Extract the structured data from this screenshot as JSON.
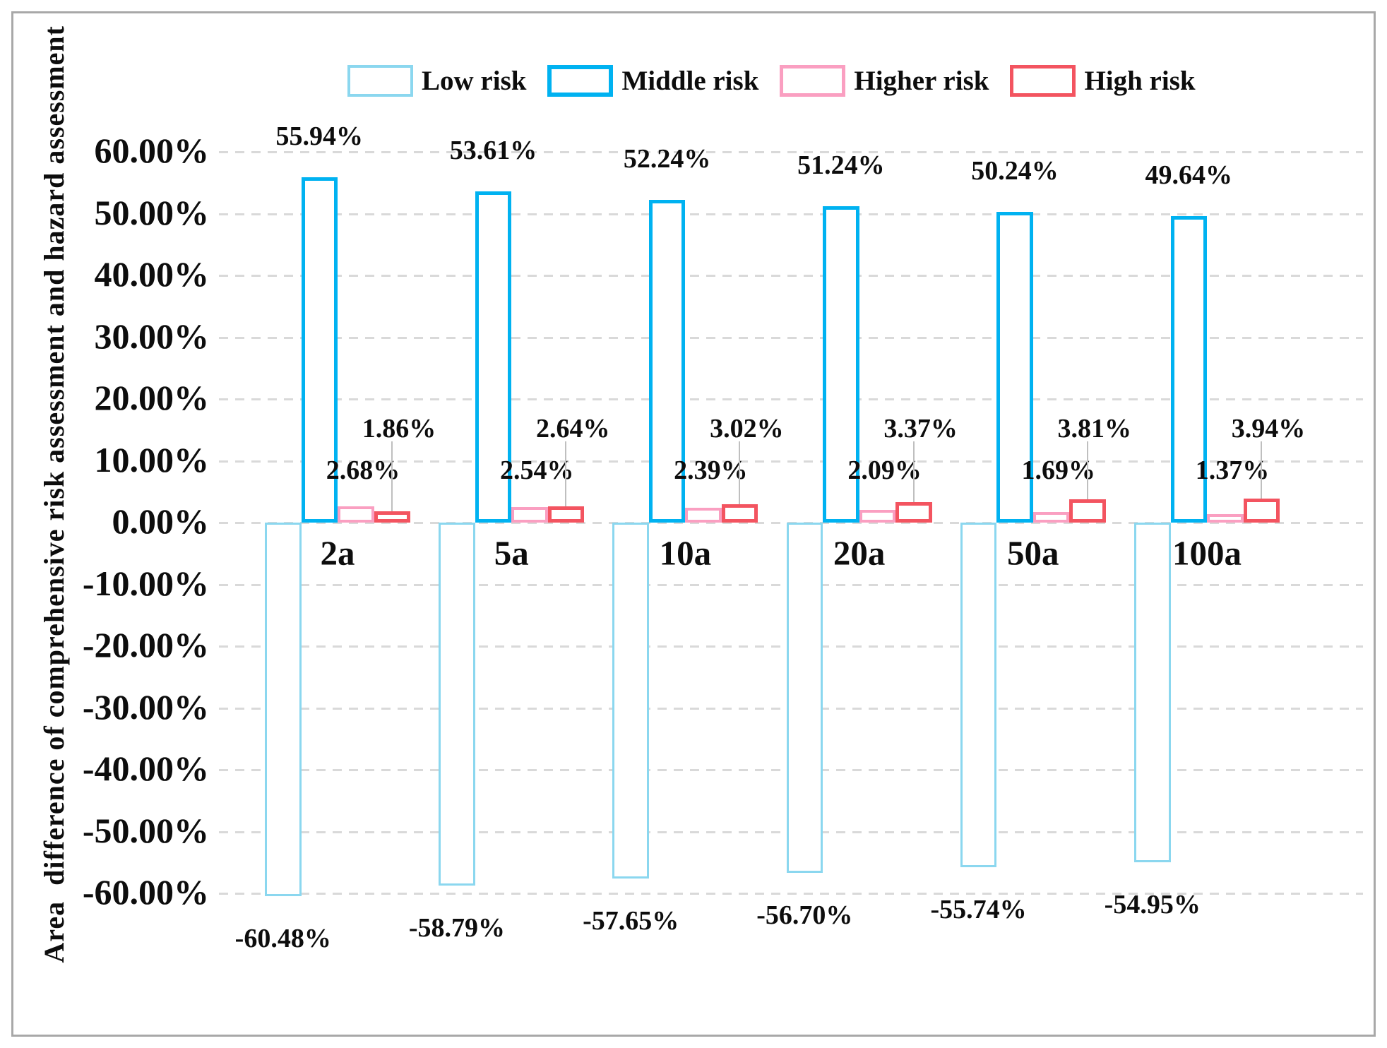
{
  "y_axis": {
    "title": "Area  difference of comprehensive risk assessment and hazard assessment",
    "tick_labels": [
      "60.00%",
      "50.00%",
      "40.00%",
      "30.00%",
      "20.00%",
      "10.00%",
      "0.00%",
      "-10.00%",
      "-20.00%",
      "-30.00%",
      "-40.00%",
      "-50.00%",
      "-60.00%"
    ],
    "tick_values": [
      60,
      50,
      40,
      30,
      20,
      10,
      0,
      -10,
      -20,
      -30,
      -40,
      -50,
      -60
    ]
  },
  "legend": [
    {
      "label": "Low risk",
      "color": "#8bd7ef"
    },
    {
      "label": "Middle risk",
      "color": "#00b2f1"
    },
    {
      "label": "Higher risk",
      "color": "#fa9fc1"
    },
    {
      "label": "High risk",
      "color": "#f35460"
    }
  ],
  "colors": {
    "gridline": "#d9d9d9",
    "leader_line": "#bfbfbf",
    "frame_border": "#a8a8a8",
    "text": "#0d0d0d",
    "bar_fill": "#ffffff"
  },
  "chart_data": {
    "type": "bar",
    "title": "",
    "xlabel": "",
    "ylabel": "Area  difference of comprehensive risk assessment and hazard assessment",
    "categories": [
      "2a",
      "5a",
      "10a",
      "20a",
      "50a",
      "100a"
    ],
    "series": [
      {
        "name": "Low risk",
        "color": "#8bd7ef",
        "values": [
          -60.48,
          -58.79,
          -57.65,
          -56.7,
          -55.74,
          -54.95
        ],
        "labels": [
          "-60.48%",
          "-58.79%",
          "-57.65%",
          "-56.70%",
          "-55.74%",
          "-54.95%"
        ]
      },
      {
        "name": "Middle risk",
        "color": "#00b2f1",
        "values": [
          55.94,
          53.61,
          52.24,
          51.24,
          50.24,
          49.64
        ],
        "labels": [
          "55.94%",
          "53.61%",
          "52.24%",
          "51.24%",
          "50.24%",
          "49.64%"
        ]
      },
      {
        "name": "Higher risk",
        "color": "#fa9fc1",
        "values": [
          2.68,
          2.54,
          2.39,
          2.09,
          1.69,
          1.37
        ],
        "labels": [
          "2.68%",
          "2.54%",
          "2.39%",
          "2.09%",
          "1.69%",
          "1.37%"
        ]
      },
      {
        "name": "High risk",
        "color": "#f35460",
        "values": [
          1.86,
          2.64,
          3.02,
          3.37,
          3.81,
          3.94
        ],
        "labels": [
          "1.86%",
          "2.64%",
          "3.02%",
          "3.37%",
          "3.81%",
          "3.94%"
        ]
      }
    ],
    "ylim": [
      -60,
      60
    ],
    "ytick_step": 10,
    "grid": "horizontal-dashed",
    "legend_position": "top",
    "bar_style": "white fill with colored outline",
    "data_labels": "all bars labeled; High risk labels use leader lines"
  }
}
